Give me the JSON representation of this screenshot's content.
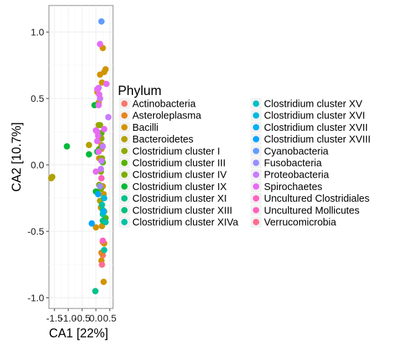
{
  "chart_data": {
    "type": "scatter",
    "xlabel": "CA1    [22%]",
    "ylabel": "CA2    [10.7%]",
    "xlim": [
      -1.7,
      0.62
    ],
    "ylim": [
      -1.08,
      1.2
    ],
    "xticks": [
      -1.5,
      -1.0,
      -0.5,
      0.0,
      0.5
    ],
    "xtick_labels": [
      "-1.5",
      "-1.0",
      "-0.5",
      "0.0",
      "0.5"
    ],
    "yticks": [
      -1.0,
      -0.5,
      0.0,
      0.5,
      1.0
    ],
    "ytick_labels": [
      "-1.0",
      "-0.5",
      "0.0",
      "0.5",
      "1.0"
    ],
    "grid": true,
    "legend_title": "Phylum",
    "legend_position": "right",
    "series": [
      {
        "name": "Actinobacteria",
        "color": "#F8766D",
        "points": [
          [
            0.25,
            -0.68
          ]
        ]
      },
      {
        "name": "Asteroleplasma",
        "color": "#E7851E",
        "points": [
          [
            0.2,
            -0.66
          ]
        ]
      },
      {
        "name": "Bacilli",
        "color": "#D09400",
        "points": [
          [
            0.25,
            0.88
          ],
          [
            0.35,
            0.72
          ],
          [
            0.3,
            0.7
          ],
          [
            0.15,
            0.68
          ],
          [
            0.22,
            0.62
          ],
          [
            0.05,
            0.55
          ],
          [
            0.1,
            0.47
          ],
          [
            0.2,
            0.12
          ],
          [
            0.12,
            0.05
          ],
          [
            0.25,
            -0.16
          ],
          [
            0.28,
            -0.22
          ],
          [
            0.18,
            -0.32
          ],
          [
            0.22,
            -0.46
          ],
          [
            0.0,
            -0.47
          ],
          [
            0.25,
            -0.58
          ],
          [
            0.3,
            -0.59
          ],
          [
            0.2,
            -0.72
          ],
          [
            0.28,
            -0.88
          ]
        ]
      },
      {
        "name": "Bacteroidetes",
        "color": "#B2A100",
        "points": [
          [
            -1.62,
            -0.1
          ],
          [
            -1.58,
            -0.09
          ],
          [
            0.1,
            0.3
          ],
          [
            0.2,
            0.15
          ],
          [
            -0.25,
            0.15
          ],
          [
            0.15,
            -0.27
          ]
        ]
      },
      {
        "name": "Clostridium cluster I",
        "color": "#8BAB00",
        "points": [
          [
            0.15,
            0.3
          ],
          [
            0.2,
            0.2
          ],
          [
            0.22,
            0.05
          ],
          [
            0.18,
            -0.05
          ],
          [
            0.12,
            -0.15
          ],
          [
            0.3,
            -0.35
          ]
        ]
      },
      {
        "name": "Clostridium cluster III",
        "color": "#55B400",
        "points": [
          [
            0.2,
            0.24
          ],
          [
            0.12,
            0.12
          ],
          [
            0.25,
            0.02
          ],
          [
            0.35,
            -0.4
          ]
        ]
      },
      {
        "name": "Clostridium cluster IV",
        "color": "#7CAE00",
        "points": [
          [
            0.18,
            -0.18
          ],
          [
            0.22,
            -0.3
          ],
          [
            0.28,
            -0.25
          ]
        ]
      },
      {
        "name": "Clostridium cluster IX",
        "color": "#00BA38",
        "points": [
          [
            -1.05,
            0.14
          ],
          [
            -0.25,
            0.08
          ],
          [
            -0.05,
            0.45
          ],
          [
            0.05,
            0.1
          ],
          [
            0.0,
            -0.2
          ]
        ]
      },
      {
        "name": "Clostridium cluster XI",
        "color": "#00C08B",
        "points": [
          [
            -0.02,
            -0.95
          ],
          [
            0.25,
            -0.34
          ]
        ]
      },
      {
        "name": "Clostridium cluster XIII",
        "color": "#00BF7D",
        "points": [
          [
            0.25,
            -0.42
          ]
        ]
      },
      {
        "name": "Clostridium cluster XIVa",
        "color": "#00C1A3",
        "points": [
          [
            0.3,
            -0.64
          ],
          [
            0.35,
            -0.43
          ],
          [
            0.25,
            -0.37
          ],
          [
            0.22,
            -0.3
          ]
        ]
      },
      {
        "name": "Clostridium cluster XV",
        "color": "#00BFC4",
        "points": [
          [
            0.2,
            -0.1
          ]
        ]
      },
      {
        "name": "Clostridium cluster XVI",
        "color": "#00B9E3",
        "points": [
          [
            0.3,
            -0.25
          ]
        ]
      },
      {
        "name": "Clostridium cluster XVII",
        "color": "#00B0F6",
        "points": [
          [
            0.28,
            -0.35
          ]
        ]
      },
      {
        "name": "Clostridium cluster XVIII",
        "color": "#00A5FF",
        "points": [
          [
            -0.15,
            -0.44
          ],
          [
            0.08,
            -0.22
          ]
        ]
      },
      {
        "name": "Cyanobacteria",
        "color": "#619CFF",
        "points": [
          [
            0.2,
            1.08
          ]
        ]
      },
      {
        "name": "Fusobacteria",
        "color": "#9590FF",
        "points": [
          [
            0.15,
            -0.16
          ]
        ]
      },
      {
        "name": "Proteobacteria",
        "color": "#C77CFF",
        "points": [
          [
            0.45,
            0.36
          ],
          [
            0.25,
            0.14
          ],
          [
            0.2,
            0.03
          ],
          [
            0.18,
            -0.03
          ],
          [
            0.1,
            0.58
          ],
          [
            0.15,
            0.5
          ]
        ]
      },
      {
        "name": "Spirochaetes",
        "color": "#E76BF3",
        "points": [
          [
            0.15,
            0.91
          ],
          [
            0.38,
            0.61
          ],
          [
            0.05,
            0.57
          ],
          [
            0.12,
            0.53
          ],
          [
            0.1,
            0.45
          ],
          [
            0.3,
            0.27
          ],
          [
            0.0,
            0.26
          ],
          [
            0.05,
            0.25
          ],
          [
            0.08,
            0.22
          ],
          [
            0.05,
            0.18
          ],
          [
            0.1,
            0.1
          ],
          [
            0.0,
            -0.05
          ]
        ]
      },
      {
        "name": "Uncultured Clostridiales",
        "color": "#FF61C3",
        "points": [
          [
            0.25,
            -0.57
          ]
        ]
      },
      {
        "name": "Uncultured Mollicutes",
        "color": "#FF62BC",
        "points": [
          [
            0.2,
            -0.1
          ]
        ]
      },
      {
        "name": "Verrucomicrobia",
        "color": "#FF6C91",
        "points": [
          [
            0.22,
            -0.75
          ]
        ]
      }
    ]
  }
}
